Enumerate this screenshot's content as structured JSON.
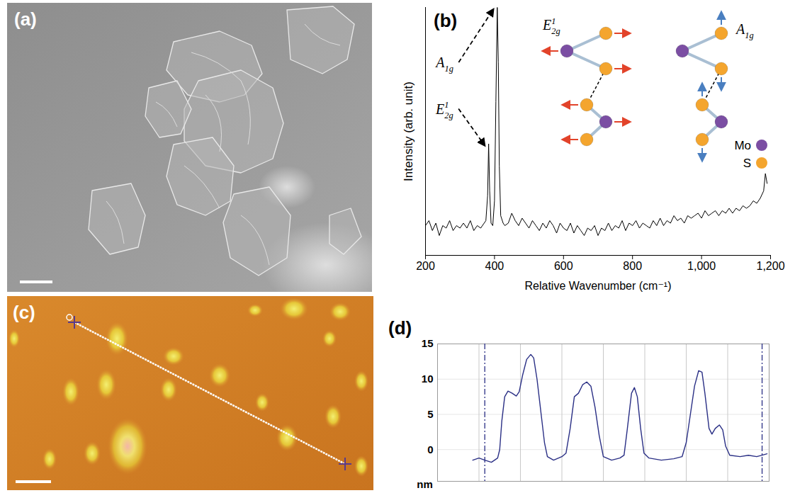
{
  "chart_data": [
    {
      "panel": "(b)",
      "type": "line",
      "color": "#000000",
      "xlabel": "Relative Wavenumber (cm⁻¹)",
      "ylabel": "Intensity (arb. unit)",
      "xlim": [
        200,
        1200
      ],
      "xticks": [
        200,
        400,
        600,
        800,
        1000,
        1200
      ],
      "ylim": [
        0,
        100
      ],
      "tick_labels": "x",
      "x": [
        200,
        210,
        220,
        230,
        240,
        250,
        260,
        270,
        280,
        290,
        300,
        310,
        320,
        330,
        340,
        350,
        360,
        370,
        375,
        380,
        383,
        386,
        390,
        395,
        400,
        404,
        408,
        411,
        414,
        418,
        425,
        430,
        440,
        450,
        460,
        470,
        480,
        490,
        500,
        510,
        520,
        530,
        540,
        550,
        560,
        570,
        580,
        590,
        600,
        610,
        620,
        630,
        640,
        650,
        660,
        670,
        680,
        690,
        700,
        710,
        720,
        730,
        740,
        750,
        760,
        770,
        780,
        790,
        800,
        810,
        820,
        830,
        840,
        850,
        860,
        870,
        880,
        890,
        900,
        910,
        920,
        930,
        940,
        950,
        960,
        970,
        980,
        990,
        1000,
        1010,
        1020,
        1030,
        1040,
        1050,
        1060,
        1070,
        1080,
        1090,
        1100,
        1110,
        1120,
        1130,
        1140,
        1150,
        1160,
        1170,
        1180,
        1185,
        1190
      ],
      "values": [
        12,
        14,
        10,
        13,
        8,
        12,
        11,
        14,
        10,
        12,
        11,
        13,
        11,
        14,
        10,
        12,
        11,
        13,
        14,
        24,
        45,
        26,
        13,
        12,
        22,
        62,
        100,
        78,
        36,
        16,
        13,
        12,
        13,
        17,
        14,
        12,
        15,
        13,
        11,
        14,
        12,
        10,
        13,
        11,
        14,
        12,
        9,
        13,
        11,
        10,
        13,
        9,
        12,
        10,
        8,
        11,
        10,
        12,
        8,
        11,
        10,
        13,
        10,
        12,
        11,
        14,
        10,
        13,
        12,
        14,
        11,
        13,
        12,
        11,
        14,
        12,
        15,
        12,
        14,
        13,
        16,
        14,
        15,
        13,
        16,
        15,
        16,
        17,
        15,
        18,
        16,
        17,
        18,
        16,
        18,
        17,
        19,
        17,
        19,
        18,
        20,
        19,
        20,
        22,
        21,
        23,
        26,
        33,
        29
      ],
      "annotations": [
        {
          "label": {
            "base": "A",
            "sub": "1g"
          },
          "x": 408
        },
        {
          "label": {
            "base": "E",
            "sup": "1",
            "sub": "2g"
          },
          "x": 383
        }
      ],
      "inset": {
        "modes": [
          {
            "base": "E",
            "sup": "1",
            "sub": "2g"
          },
          {
            "base": "A",
            "sub": "1g"
          }
        ],
        "atoms": [
          {
            "name": "Mo",
            "color": "#7b4ea3"
          },
          {
            "name": "S",
            "color": "#f4a52e"
          }
        ]
      }
    },
    {
      "panel": "(d)",
      "type": "line",
      "color": "#2a2f85",
      "ylabel": "nm",
      "xlim": [
        0,
        8
      ],
      "xticks": [
        0,
        1,
        2,
        3,
        4,
        5,
        6,
        7,
        8
      ],
      "ylim": [
        -4.5,
        15
      ],
      "yticks": [
        0,
        5,
        10,
        15
      ],
      "grid": true,
      "tick_labels": "y",
      "cursors": [
        1.14,
        7.83
      ],
      "x": [
        0.85,
        1.0,
        1.14,
        1.3,
        1.45,
        1.5,
        1.55,
        1.62,
        1.7,
        1.8,
        1.9,
        1.97,
        2.05,
        2.15,
        2.25,
        2.32,
        2.4,
        2.5,
        2.58,
        2.65,
        2.8,
        3.0,
        3.1,
        3.2,
        3.3,
        3.4,
        3.5,
        3.6,
        3.7,
        3.8,
        3.9,
        4.0,
        4.2,
        4.4,
        4.5,
        4.58,
        4.68,
        4.75,
        4.82,
        4.9,
        4.98,
        5.1,
        5.4,
        5.7,
        5.9,
        6.0,
        6.1,
        6.2,
        6.3,
        6.38,
        6.45,
        6.55,
        6.62,
        6.7,
        6.8,
        6.88,
        6.95,
        7.05,
        7.3,
        7.5,
        7.7,
        7.83,
        7.95
      ],
      "values": [
        -1.5,
        -1.2,
        -1.5,
        -1.8,
        -1.2,
        0,
        4,
        7.5,
        8.3,
        8.0,
        7.6,
        8.2,
        10.5,
        12.8,
        13.5,
        13.0,
        10,
        5,
        1,
        -1,
        -1.5,
        -1.0,
        -0.5,
        3,
        7.5,
        8,
        9.2,
        9.6,
        9.0,
        6,
        2,
        -1,
        -1.5,
        -1.2,
        -0.8,
        3,
        8,
        8.8,
        7.5,
        3,
        -0.5,
        -1.2,
        -1.5,
        -1.3,
        -1.0,
        1,
        5,
        9,
        11.2,
        11,
        8,
        3,
        2.2,
        3.0,
        3.5,
        2.8,
        0.5,
        -0.8,
        -1,
        -0.8,
        -1,
        -0.8,
        -0.6
      ]
    }
  ],
  "images": [
    {
      "panel": "(a)"
    },
    {
      "panel": "(c)"
    }
  ]
}
